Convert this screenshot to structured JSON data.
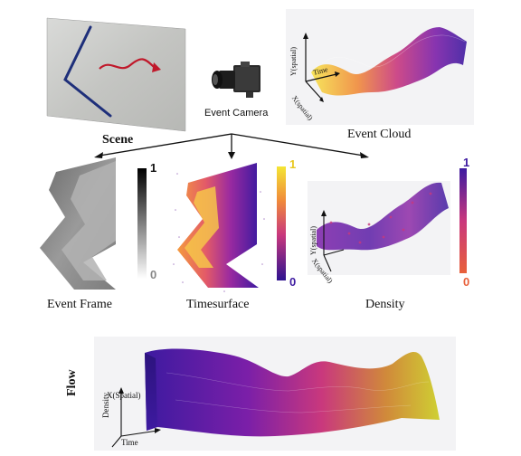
{
  "scene": {
    "label": "Scene"
  },
  "camera": {
    "label": "Event Camera"
  },
  "event_cloud": {
    "label": "Event Cloud",
    "axis_y": "Y(spatial)",
    "axis_t": "Time",
    "axis_x": "X(spatial)"
  },
  "event_frame": {
    "label": "Event Frame",
    "cb_max": "1",
    "cb_min": "0"
  },
  "timesurface": {
    "label": "Timesurface",
    "cb_max": "1",
    "cb_min": "0"
  },
  "density": {
    "label": "Density",
    "cb_max": "1",
    "cb_min": "0",
    "axis_y": "Y(spatial)",
    "axis_x": "X(spatial)"
  },
  "flow": {
    "label": "Flow",
    "axis_density": "Density",
    "axis_x": "X(Spatial)",
    "axis_t": "Time"
  },
  "colors": {
    "scene_line": "#1e2f7a",
    "scene_arrow": "#c0182a",
    "plasma_low": "#f4d530",
    "plasma_mid": "#c9387d",
    "plasma_high": "#3d1aa0",
    "density_low": "#e8603a"
  }
}
